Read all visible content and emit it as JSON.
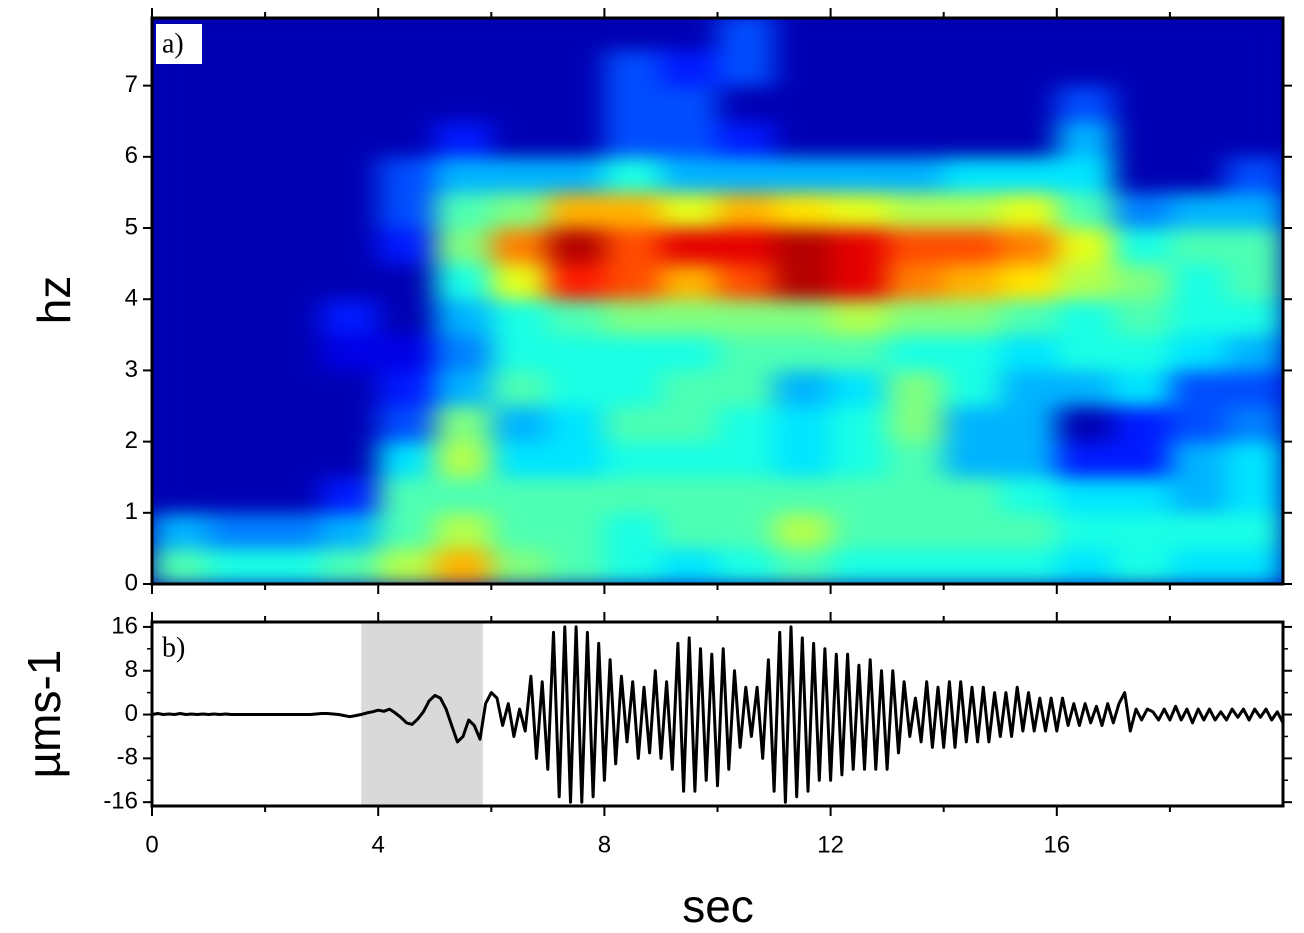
{
  "chart_data": [
    {
      "type": "heatmap",
      "label": "a)",
      "ylabel": "hz",
      "colormap": "jet",
      "xlim": [
        0,
        20
      ],
      "ylim": [
        0,
        7.95
      ],
      "yticks": [
        0,
        1,
        2,
        3,
        4,
        5,
        6,
        7
      ],
      "x_bins": [
        0,
        1,
        2,
        3,
        4,
        5,
        6,
        7,
        8,
        9,
        10,
        11,
        12,
        13,
        14,
        15,
        16,
        17,
        18,
        19,
        20
      ],
      "y_bins": [
        0,
        0.5,
        1,
        1.5,
        2,
        2.5,
        3,
        3.5,
        4,
        4.5,
        5,
        5.5,
        6,
        6.5,
        7,
        7.5,
        8
      ],
      "values": [
        [
          0.45,
          0.3,
          0.05,
          0.05,
          0.05,
          0.05,
          0.05,
          0.05,
          0.05,
          0.05,
          0.05,
          0.05,
          0.05,
          0.05,
          0.05,
          0.05
        ],
        [
          0.4,
          0.25,
          0.05,
          0.05,
          0.05,
          0.05,
          0.05,
          0.05,
          0.05,
          0.05,
          0.05,
          0.05,
          0.05,
          0.05,
          0.05,
          0.05
        ],
        [
          0.4,
          0.25,
          0.05,
          0.05,
          0.05,
          0.05,
          0.05,
          0.05,
          0.05,
          0.05,
          0.05,
          0.05,
          0.05,
          0.05,
          0.05,
          0.05
        ],
        [
          0.45,
          0.3,
          0.15,
          0.05,
          0.05,
          0.05,
          0.1,
          0.15,
          0.05,
          0.05,
          0.05,
          0.05,
          0.05,
          0.05,
          0.05,
          0.05
        ],
        [
          0.55,
          0.45,
          0.45,
          0.35,
          0.2,
          0.15,
          0.1,
          0.05,
          0.05,
          0.15,
          0.2,
          0.2,
          0.05,
          0.05,
          0.05,
          0.05
        ],
        [
          0.7,
          0.55,
          0.45,
          0.55,
          0.5,
          0.3,
          0.25,
          0.3,
          0.4,
          0.5,
          0.45,
          0.3,
          0.15,
          0.05,
          0.05,
          0.05
        ],
        [
          0.5,
          0.45,
          0.45,
          0.35,
          0.3,
          0.45,
          0.4,
          0.4,
          0.6,
          0.75,
          0.5,
          0.3,
          0.05,
          0.05,
          0.05,
          0.05
        ],
        [
          0.45,
          0.45,
          0.45,
          0.35,
          0.35,
          0.4,
          0.4,
          0.45,
          0.85,
          0.95,
          0.7,
          0.3,
          0.05,
          0.05,
          0.05,
          0.05
        ],
        [
          0.4,
          0.4,
          0.45,
          0.4,
          0.45,
          0.4,
          0.4,
          0.5,
          0.8,
          0.8,
          0.7,
          0.4,
          0.2,
          0.2,
          0.2,
          0.05
        ],
        [
          0.35,
          0.45,
          0.45,
          0.4,
          0.45,
          0.45,
          0.4,
          0.5,
          0.7,
          0.9,
          0.6,
          0.3,
          0.2,
          0.2,
          0.15,
          0.05
        ],
        [
          0.4,
          0.45,
          0.45,
          0.4,
          0.4,
          0.45,
          0.45,
          0.5,
          0.8,
          0.9,
          0.7,
          0.3,
          0.15,
          0.05,
          0.2,
          0.2
        ],
        [
          0.45,
          0.55,
          0.45,
          0.35,
          0.35,
          0.3,
          0.45,
          0.5,
          0.95,
          0.95,
          0.65,
          0.3,
          0.05,
          0.05,
          0.05,
          0.05
        ],
        [
          0.4,
          0.45,
          0.45,
          0.4,
          0.4,
          0.35,
          0.45,
          0.55,
          0.9,
          0.9,
          0.6,
          0.3,
          0.05,
          0.05,
          0.05,
          0.05
        ],
        [
          0.4,
          0.45,
          0.45,
          0.45,
          0.5,
          0.5,
          0.4,
          0.5,
          0.75,
          0.8,
          0.55,
          0.3,
          0.05,
          0.05,
          0.05,
          0.05
        ],
        [
          0.4,
          0.45,
          0.45,
          0.3,
          0.3,
          0.4,
          0.4,
          0.5,
          0.7,
          0.8,
          0.55,
          0.35,
          0.05,
          0.05,
          0.05,
          0.05
        ],
        [
          0.4,
          0.45,
          0.4,
          0.3,
          0.3,
          0.3,
          0.35,
          0.45,
          0.65,
          0.75,
          0.6,
          0.35,
          0.05,
          0.05,
          0.05,
          0.05
        ],
        [
          0.35,
          0.4,
          0.35,
          0.15,
          0.05,
          0.3,
          0.4,
          0.4,
          0.55,
          0.6,
          0.45,
          0.35,
          0.3,
          0.2,
          0.05,
          0.05
        ],
        [
          0.4,
          0.4,
          0.35,
          0.15,
          0.15,
          0.35,
          0.4,
          0.45,
          0.5,
          0.4,
          0.25,
          0.05,
          0.05,
          0.05,
          0.05,
          0.05
        ],
        [
          0.35,
          0.4,
          0.3,
          0.3,
          0.2,
          0.2,
          0.35,
          0.4,
          0.4,
          0.45,
          0.3,
          0.05,
          0.05,
          0.05,
          0.05,
          0.05
        ],
        [
          0.35,
          0.4,
          0.35,
          0.35,
          0.25,
          0.2,
          0.3,
          0.4,
          0.45,
          0.45,
          0.3,
          0.2,
          0.05,
          0.05,
          0.05,
          0.05
        ]
      ]
    },
    {
      "type": "line",
      "label": "b)",
      "ylabel": "µms-1",
      "xlabel": "sec",
      "color": "#000000",
      "xlim": [
        0,
        20
      ],
      "ylim": [
        -16.7,
        16.9
      ],
      "xticks": [
        0,
        4,
        8,
        12,
        16
      ],
      "xticks_minor": [
        2,
        6,
        10,
        14,
        18
      ],
      "yticks": [
        16,
        8,
        0,
        -8,
        -16
      ],
      "yticks_minor": [
        12,
        4,
        -4,
        -12
      ],
      "highlight_x": [
        3.7,
        5.85
      ],
      "highlight_color": "#d9d9d9",
      "x": [
        0,
        0.1,
        0.2,
        0.3,
        0.4,
        0.5,
        0.6,
        0.7,
        0.8,
        0.9,
        1,
        1.1,
        1.2,
        1.3,
        1.4,
        1.5,
        1.6,
        1.7,
        1.8,
        1.9,
        2,
        2.1,
        2.2,
        2.3,
        2.4,
        2.5,
        2.6,
        2.7,
        2.8,
        2.9,
        3,
        3.1,
        3.2,
        3.3,
        3.4,
        3.5,
        3.6,
        3.7,
        3.8,
        3.9,
        4,
        4.1,
        4.2,
        4.3,
        4.4,
        4.5,
        4.6,
        4.7,
        4.8,
        4.9,
        5,
        5.1,
        5.2,
        5.3,
        5.4,
        5.5,
        5.6,
        5.7,
        5.8,
        5.9,
        6,
        6.1,
        6.2,
        6.3,
        6.4,
        6.5,
        6.6,
        6.7,
        6.8,
        6.9,
        7,
        7.1,
        7.2,
        7.3,
        7.4,
        7.5,
        7.6,
        7.7,
        7.8,
        7.9,
        8,
        8.1,
        8.2,
        8.3,
        8.4,
        8.5,
        8.6,
        8.7,
        8.8,
        8.9,
        9,
        9.1,
        9.2,
        9.3,
        9.4,
        9.5,
        9.6,
        9.7,
        9.8,
        9.9,
        10,
        10.1,
        10.2,
        10.3,
        10.4,
        10.5,
        10.6,
        10.7,
        10.8,
        10.9,
        11,
        11.1,
        11.2,
        11.3,
        11.4,
        11.5,
        11.6,
        11.7,
        11.8,
        11.9,
        12,
        12.1,
        12.2,
        12.3,
        12.4,
        12.5,
        12.6,
        12.7,
        12.8,
        12.9,
        13,
        13.1,
        13.2,
        13.3,
        13.4,
        13.5,
        13.6,
        13.7,
        13.8,
        13.9,
        14,
        14.1,
        14.2,
        14.3,
        14.4,
        14.5,
        14.6,
        14.7,
        14.8,
        14.9,
        15,
        15.1,
        15.2,
        15.3,
        15.4,
        15.5,
        15.6,
        15.7,
        15.8,
        15.9,
        16,
        16.1,
        16.2,
        16.3,
        16.4,
        16.5,
        16.6,
        16.7,
        16.8,
        16.9,
        17,
        17.1,
        17.2,
        17.3,
        17.4,
        17.5,
        17.6,
        17.7,
        17.8,
        17.9,
        18,
        18.1,
        18.2,
        18.3,
        18.4,
        18.5,
        18.6,
        18.7,
        18.8,
        18.9,
        19,
        19.1,
        19.2,
        19.3,
        19.4,
        19.5,
        19.6,
        19.7,
        19.8,
        19.9,
        20
      ],
      "values": [
        0,
        0.2,
        0,
        0.1,
        0,
        0.2,
        0,
        0.1,
        0,
        0.1,
        0,
        0.1,
        0,
        0.1,
        0,
        0,
        0,
        0,
        0,
        0,
        0,
        0,
        0,
        0,
        0,
        0,
        0,
        0,
        0,
        0.1,
        0.2,
        0.2,
        0.1,
        0,
        -0.2,
        -0.4,
        -0.2,
        0,
        0.3,
        0.5,
        0.8,
        0.6,
        1,
        0.3,
        -0.5,
        -1.5,
        -1.8,
        -0.8,
        0.5,
        2.5,
        3.5,
        3,
        1,
        -2,
        -5,
        -4,
        -1,
        -2,
        -4.5,
        2,
        4,
        3,
        -2,
        2,
        -4,
        1,
        -3,
        7,
        -8,
        6,
        -10,
        15,
        -15,
        16,
        -16,
        16,
        -16,
        15,
        -15,
        13,
        -12,
        10,
        -9,
        7,
        -5,
        6,
        -8,
        5,
        -7,
        8,
        -8,
        6,
        -10,
        13,
        -14,
        14,
        -14,
        12,
        -12,
        11,
        -13,
        12,
        -10,
        8,
        -6,
        5,
        -4,
        5,
        -8,
        10,
        -14,
        15,
        -16,
        16,
        -15,
        14,
        -14,
        13,
        -12,
        12,
        -12,
        11,
        -11,
        11,
        -10,
        9,
        -10,
        10,
        -10,
        8,
        -10,
        8,
        -7,
        6,
        -4,
        3,
        -5,
        6,
        -6,
        5,
        -6,
        6,
        -6,
        6,
        -5,
        5,
        -5,
        5,
        -5,
        4,
        -4,
        4,
        -4,
        5,
        -3,
        4,
        -3,
        3,
        -3,
        3,
        -3,
        3,
        -2,
        2,
        -2,
        2,
        -1.5,
        1.5,
        -2,
        2,
        -1.5,
        2,
        4,
        -3,
        1,
        -1,
        1,
        0.5,
        -1,
        1,
        -1,
        1.5,
        -1,
        1,
        -1.5,
        1,
        -1,
        1,
        -1,
        0.5,
        -1,
        1,
        -0.5,
        1,
        -1,
        1,
        -0.5,
        1,
        -1,
        0.5,
        -1.5
      ]
    }
  ]
}
